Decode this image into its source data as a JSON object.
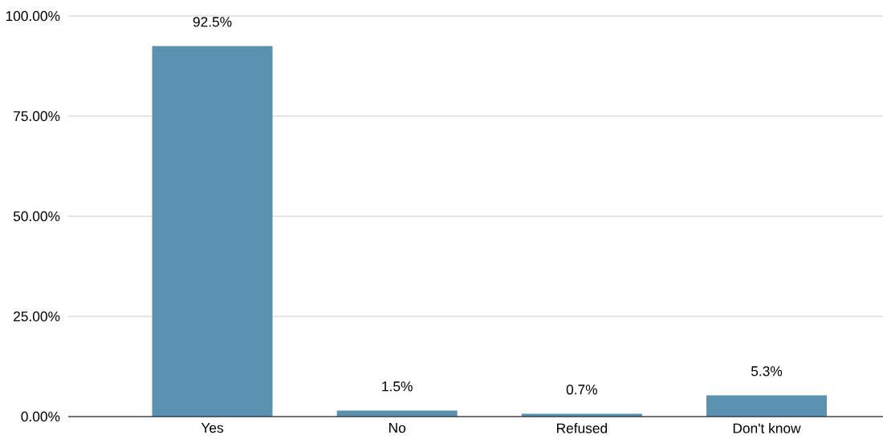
{
  "chart_data": {
    "type": "bar",
    "categories": [
      "Yes",
      "No",
      "Refused",
      "Don't know"
    ],
    "values": [
      92.5,
      1.5,
      0.7,
      5.3
    ],
    "value_labels": [
      "92.5%",
      "1.5%",
      "0.7%",
      "5.3%"
    ],
    "color": "#5a91b0",
    "ylim": [
      0,
      100
    ],
    "yticks": [
      {
        "value": 0,
        "label": "0.00%"
      },
      {
        "value": 25,
        "label": "25.00%"
      },
      {
        "value": 50,
        "label": "50.00%"
      },
      {
        "value": 75,
        "label": "75.00%"
      },
      {
        "value": 100,
        "label": "100.00%"
      }
    ],
    "grid": "y"
  }
}
